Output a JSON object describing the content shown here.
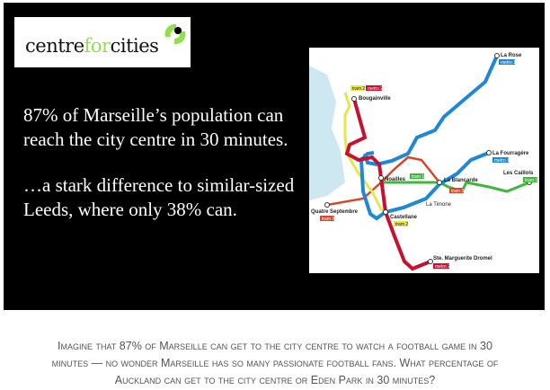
{
  "logo": {
    "text_pre": "centre",
    "text_mid": "for",
    "text_post": "cities",
    "accent": "#8fe04a"
  },
  "headline": {
    "line1": "87% of Marseille’s population can",
    "line2": "reach the city centre in 30 minutes.",
    "line3": "…a stark difference to similar-sized",
    "line4": "Leeds, where only 38% can."
  },
  "map": {
    "colors": {
      "metro1": "#1e88d8",
      "metro2": "#c8102e",
      "tram1": "#3db83a",
      "tram2": "#e6e64a",
      "tram3": "#d9442a",
      "sea": "#cde8f0"
    },
    "labels": {
      "la_rose": "La Rose",
      "bougainville": "Bougainville",
      "la_fourragere": "La Fourragère",
      "les_caillols": "Les Caillols",
      "la_blancarde": "La Blancarde",
      "noailles": "Noailles",
      "castellane": "Castellane",
      "quatre_septembre": "Quatre Septembre",
      "ste_marguerite": "Ste. Marguerite Dromel",
      "la_timone": "La Timone"
    },
    "badges": {
      "metro1": "metro 1",
      "metro2": "metro 2",
      "tram1": "tram 1",
      "tram2": "tram 2",
      "tram3": "tram 3"
    }
  },
  "caption": {
    "line1": "Imagine that 87% of Marseille can get to the city centre to watch a football game in 30",
    "line2": "minutes — no wonder Marseille has so many passionate football fans. What percentage of",
    "line3": "Auckland can get to the city centre or Eden Park in 30 minutes?"
  }
}
